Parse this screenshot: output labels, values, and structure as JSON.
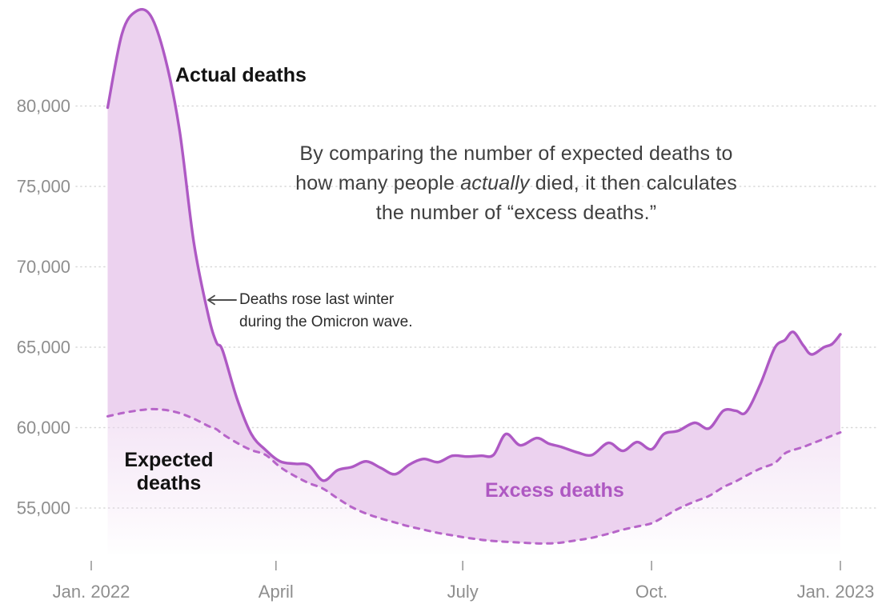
{
  "figure": {
    "labels": {
      "actual": "Actual deaths",
      "expected": "Expected deaths",
      "excess": "Excess deaths"
    },
    "annotation": {
      "line1": "Deaths rose last winter",
      "line2": "during the Omicron wave."
    },
    "explainer": {
      "line1": "By comparing the number of expected deaths to",
      "line2_pre": "how many people ",
      "line2_italic": "actually",
      "line2_post": " died, it then calculates",
      "line3": "the number of “excess deaths.”"
    }
  },
  "chart_data": {
    "type": "area",
    "title": "",
    "xlabel": "",
    "ylabel": "",
    "x_unit": "day of year starting Jan 1, 2022 (weekly data)",
    "x": [
      8,
      15,
      22,
      29,
      36,
      43,
      50,
      57,
      61,
      64,
      71,
      78,
      85,
      92,
      99,
      106,
      113,
      120,
      127,
      134,
      141,
      148,
      155,
      162,
      169,
      176,
      183,
      190,
      196,
      202,
      209,
      217,
      223,
      229,
      237,
      244,
      252,
      259,
      266,
      273,
      279,
      286,
      294,
      301,
      308,
      314,
      319,
      326,
      333,
      338,
      342,
      347,
      351,
      357,
      361,
      365
    ],
    "series": [
      {
        "name": "Actual deaths",
        "style": "solid",
        "values": [
          79900,
          84500,
          85900,
          85600,
          83000,
          78500,
          71500,
          67000,
          65300,
          64800,
          61800,
          59600,
          58600,
          57900,
          57750,
          57650,
          56700,
          57350,
          57550,
          57900,
          57500,
          57100,
          57700,
          58050,
          57850,
          58250,
          58200,
          58250,
          58300,
          59600,
          58900,
          59350,
          59000,
          58800,
          58450,
          58300,
          59050,
          58550,
          59100,
          58650,
          59600,
          59800,
          60300,
          59950,
          61050,
          61050,
          60950,
          62700,
          64950,
          65450,
          65950,
          65100,
          64550,
          65000,
          65200,
          65800
        ]
      },
      {
        "name": "Expected deaths",
        "style": "dashed",
        "values": [
          60700,
          60900,
          61050,
          61150,
          61100,
          60900,
          60550,
          60100,
          59900,
          59600,
          59050,
          58600,
          58300,
          57550,
          57000,
          56550,
          56200,
          55600,
          55050,
          54650,
          54350,
          54100,
          53850,
          53650,
          53450,
          53300,
          53150,
          53025,
          52950,
          52900,
          52850,
          52800,
          52800,
          52850,
          53000,
          53150,
          53400,
          53650,
          53850,
          54050,
          54450,
          54950,
          55400,
          55750,
          56300,
          56650,
          57000,
          57450,
          57800,
          58400,
          58600,
          58800,
          59000,
          59300,
          59500,
          59700
        ]
      }
    ],
    "x_ticks": [
      {
        "label": "Jan. 2022",
        "day": 0
      },
      {
        "label": "April",
        "day": 90
      },
      {
        "label": "July",
        "day": 181
      },
      {
        "label": "Oct.",
        "day": 273
      },
      {
        "label": "Jan. 2023",
        "day": 365
      }
    ],
    "y_ticks": [
      {
        "label": "55,000",
        "value": 55000
      },
      {
        "label": "60,000",
        "value": 60000
      },
      {
        "label": "65,000",
        "value": 65000
      },
      {
        "label": "70,000",
        "value": 70000
      },
      {
        "label": "75,000",
        "value": 75000
      },
      {
        "label": "80,000",
        "value": 80000
      }
    ],
    "ylim": [
      52500,
      86200
    ],
    "grid": "horizontal-dotted",
    "legend": "inline-labels",
    "colors": {
      "actual_line": "#ae59c4",
      "expected_line": "#b765c9",
      "fill_between": "#ecd2ef",
      "grid": "#d8d8d8",
      "axis_text": "#8e8e8e",
      "tick": "#9a9a9a",
      "excess_label": "#ae58c2",
      "text_dark": "#121212",
      "annotation_text": "#2b2b2b",
      "annotation_arrow": "#4d4d4d",
      "explainer_text": "#3f3f3f"
    }
  }
}
